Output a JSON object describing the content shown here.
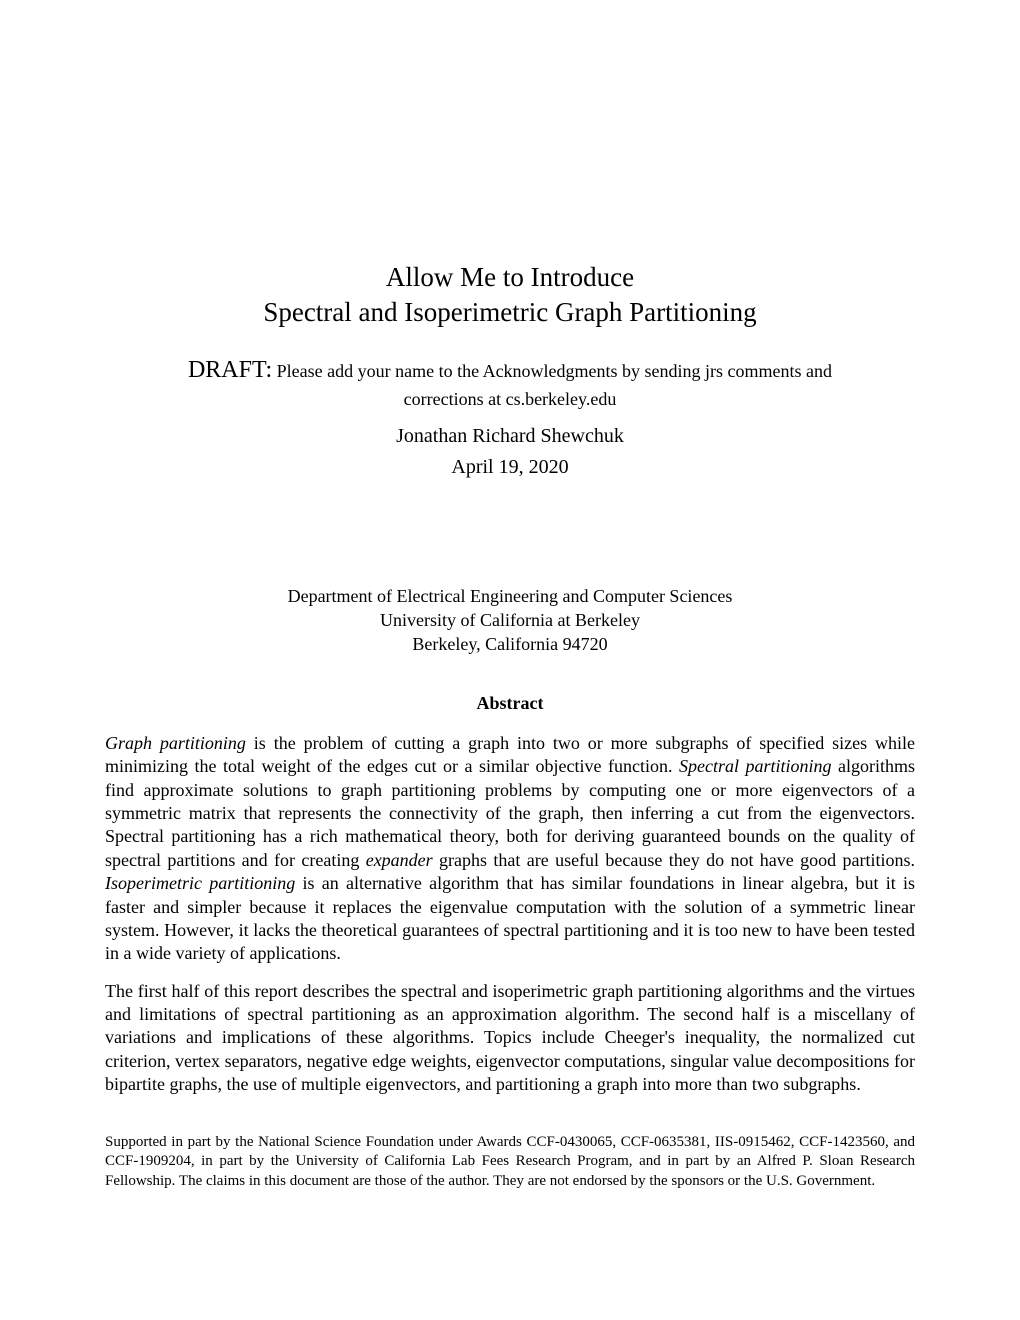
{
  "title": {
    "line1": "Allow Me to Introduce",
    "line2": "Spectral and Isoperimetric Graph Partitioning"
  },
  "draft": {
    "prefix": "DRAFT:",
    "note_line1": " Please add your name to the Acknowledgments by sending jrs comments and",
    "note_line2": "corrections at cs.berkeley.edu"
  },
  "author": "Jonathan Richard Shewchuk",
  "date": "April 19, 2020",
  "affiliation": {
    "line1": "Department of Electrical Engineering and Computer Sciences",
    "line2": "University of California at Berkeley",
    "line3": "Berkeley, California 94720"
  },
  "abstract_heading": "Abstract",
  "abstract": {
    "p1_seg1_i": "Graph partitioning",
    "p1_seg2": " is the problem of cutting a graph into two or more subgraphs of specified sizes while minimizing the total weight of the edges cut or a similar objective function. ",
    "p1_seg3_i": "Spectral partitioning",
    "p1_seg4": " algorithms find approximate solutions to graph partitioning problems by computing one or more eigenvectors of a symmetric matrix that represents the connectivity of the graph, then inferring a cut from the eigenvectors. Spectral partitioning has a rich mathematical theory, both for deriving guaranteed bounds on the quality of spectral partitions and for creating ",
    "p1_seg5_i": "expander",
    "p1_seg6": " graphs that are useful because they do not have good partitions. ",
    "p1_seg7_i": "Isoperimetric partitioning",
    "p1_seg8": " is an alternative algorithm that has similar foundations in linear algebra, but it is faster and simpler because it replaces the eigenvalue computation with the solution of a symmetric linear system. However, it lacks the theoretical guarantees of spectral partitioning and it is too new to have been tested in a wide variety of applications.",
    "p2": "The first half of this report describes the spectral and isoperimetric graph partitioning algorithms and the virtues and limitations of spectral partitioning as an approximation algorithm. The second half is a miscellany of variations and implications of these algorithms. Topics include Cheeger's inequality, the normalized cut criterion, vertex separators, negative edge weights, eigenvector computations, singular value decompositions for bipartite graphs, the use of multiple eigenvectors, and partitioning a graph into more than two subgraphs."
  },
  "funding": "Supported in part by the National Science Foundation under Awards CCF-0430065, CCF-0635381, IIS-0915462, CCF-1423560, and CCF-1909204, in part by the University of California Lab Fees Research Program, and in part by an Alfred P. Sloan Research Fellowship. The claims in this document are those of the author. They are not endorsed by the sponsors or the U.S. Government."
}
